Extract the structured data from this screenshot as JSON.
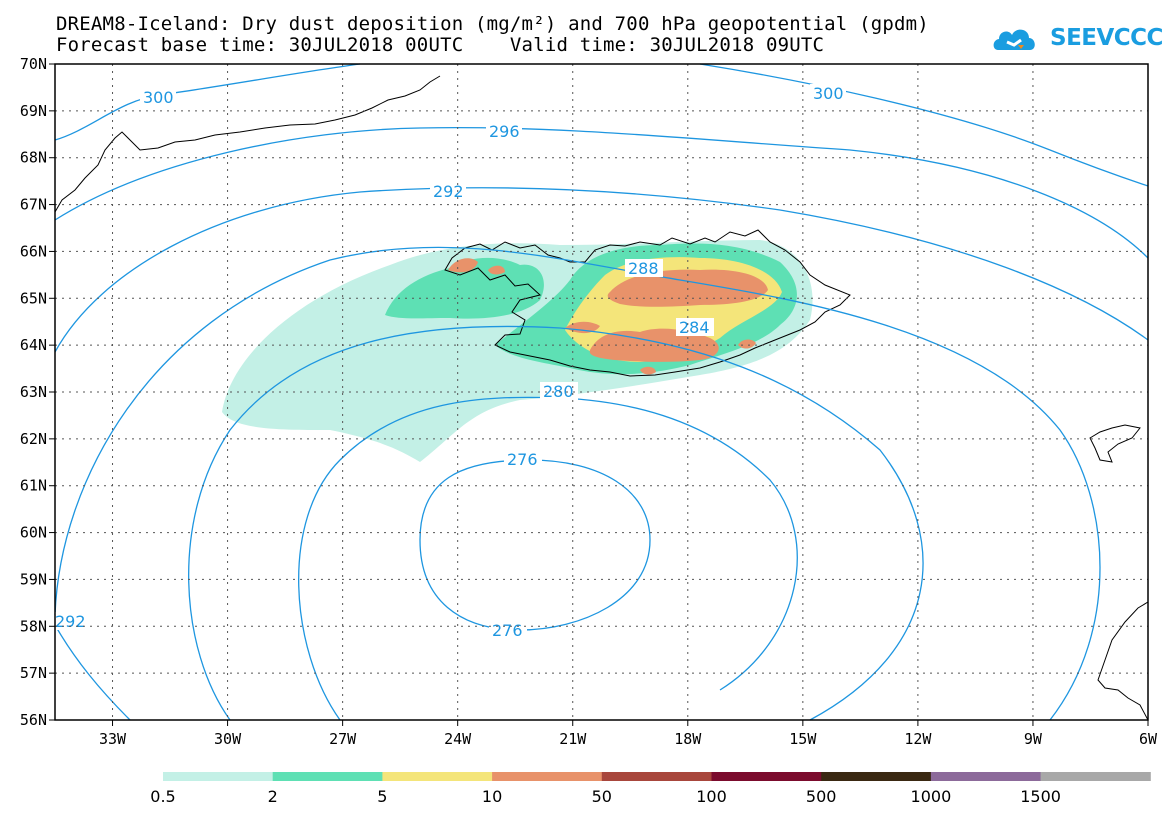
{
  "title_line1": "DREAM8-Iceland: Dry dust deposition (mg/m²) and 700 hPa geopotential (gpdm)",
  "title_line2": "Forecast base time: 30JUL2018 00UTC    Valid time: 30JUL2018 09UTC",
  "logo_text": "SEEVCCC",
  "chart_data": {
    "type": "map",
    "lon_labels": [
      "33W",
      "30W",
      "27W",
      "24W",
      "21W",
      "18W",
      "15W",
      "12W",
      "9W",
      "6W"
    ],
    "lat_labels": [
      "70N",
      "69N",
      "68N",
      "67N",
      "66N",
      "65N",
      "64N",
      "63N",
      "62N",
      "61N",
      "60N",
      "59N",
      "58N",
      "57N",
      "56N"
    ],
    "lon_range": [
      -34.5,
      -6
    ],
    "lat_range": [
      56,
      70
    ],
    "contour_labels": [
      "300",
      "296",
      "292",
      "288",
      "284",
      "280",
      "276",
      "276",
      "300",
      "292"
    ],
    "contour_color": "#1e96e0",
    "legend": {
      "labels": [
        "0.5",
        "2",
        "5",
        "10",
        "50",
        "100",
        "500",
        "1000",
        "1500"
      ],
      "colors": [
        "#c3f0e6",
        "#5ee0b4",
        "#f4e57a",
        "#e8926a",
        "#a8463c",
        "#7b0b2d",
        "#3a2812",
        "#8c6a9a",
        "#a8a8a8"
      ]
    }
  }
}
